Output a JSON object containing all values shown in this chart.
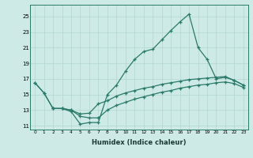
{
  "xlabel": "Humidex (Indice chaleur)",
  "background_color": "#ceeae6",
  "line_color": "#2a7a6a",
  "grid_color": "#b0d8d0",
  "xlim": [
    -0.5,
    23.5
  ],
  "ylim": [
    10.5,
    26.5
  ],
  "yticks": [
    11,
    13,
    15,
    17,
    19,
    21,
    23,
    25
  ],
  "xticks": [
    0,
    1,
    2,
    3,
    4,
    5,
    6,
    7,
    8,
    9,
    10,
    11,
    12,
    13,
    14,
    15,
    16,
    17,
    18,
    19,
    20,
    21,
    22,
    23
  ],
  "lines": [
    {
      "x": [
        0,
        1,
        2,
        3,
        4,
        5,
        6,
        7,
        8,
        9,
        10,
        11,
        12,
        13,
        14,
        15,
        16,
        17,
        18,
        19,
        20,
        21,
        22,
        23
      ],
      "y": [
        16.5,
        15.2,
        13.2,
        13.2,
        12.8,
        11.2,
        11.4,
        11.4,
        15.0,
        16.2,
        18.0,
        19.5,
        20.5,
        20.8,
        22.0,
        23.2,
        24.3,
        25.3,
        21.0,
        19.5,
        17.0,
        17.2,
        16.8,
        16.2
      ]
    },
    {
      "x": [
        0,
        1,
        2,
        3,
        4,
        5,
        6,
        7,
        8,
        9,
        10,
        11,
        12,
        13,
        14,
        15,
        16,
        17,
        18,
        19,
        20,
        21,
        22,
        23
      ],
      "y": [
        16.5,
        15.2,
        13.2,
        13.2,
        13.0,
        12.5,
        12.6,
        13.8,
        14.2,
        14.8,
        15.2,
        15.5,
        15.8,
        16.0,
        16.3,
        16.5,
        16.7,
        16.9,
        17.0,
        17.1,
        17.2,
        17.3,
        16.8,
        16.2
      ]
    },
    {
      "x": [
        2,
        3,
        4,
        5,
        6,
        7,
        8,
        9,
        10,
        11,
        12,
        13,
        14,
        15,
        16,
        17,
        18,
        19,
        20,
        21,
        22,
        23
      ],
      "y": [
        13.2,
        13.2,
        13.0,
        12.2,
        12.0,
        12.0,
        13.0,
        13.6,
        14.0,
        14.4,
        14.7,
        15.0,
        15.3,
        15.5,
        15.8,
        16.0,
        16.2,
        16.3,
        16.5,
        16.6,
        16.4,
        15.9
      ]
    }
  ]
}
